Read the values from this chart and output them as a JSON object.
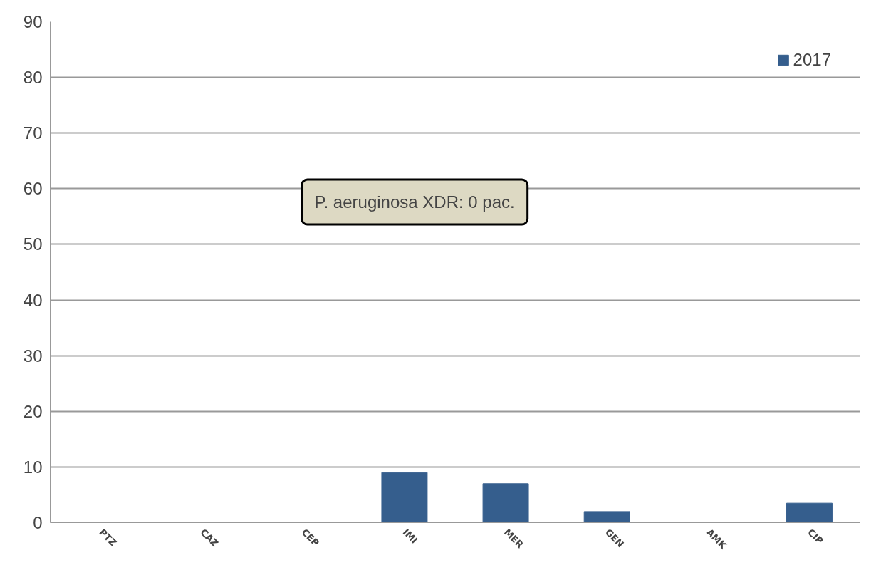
{
  "chart_data": {
    "type": "bar",
    "categories": [
      "PTZ",
      "CAZ",
      "CEP",
      "IMI",
      "MER",
      "GEN",
      "AMK",
      "CIP"
    ],
    "series": [
      {
        "name": "2017",
        "color": "#355e8d",
        "values": [
          0,
          0,
          0,
          9,
          7,
          2,
          0,
          3.5
        ]
      }
    ],
    "ylim": [
      0,
      90
    ],
    "yticks": [
      0,
      10,
      20,
      30,
      40,
      50,
      60,
      70,
      80,
      90
    ],
    "grid": "y",
    "legend": "top right",
    "annotations": [
      "P. aeruginosa XDR: 0 pac."
    ]
  }
}
